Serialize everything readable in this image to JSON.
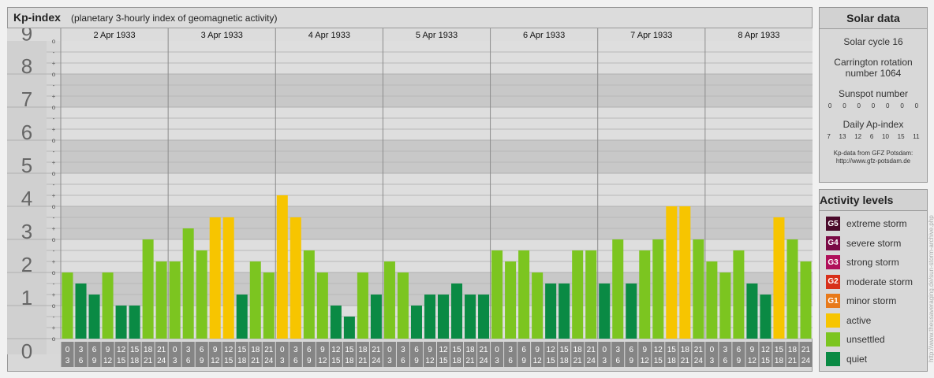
{
  "header": {
    "title": "Kp-index",
    "subtitle": "(planetary 3-hourly index of geomagnetic activity)"
  },
  "chart_data": {
    "type": "bar",
    "title": "Kp-index",
    "subtitle": "(planetary 3-hourly index of geomagnetic activity)",
    "ylim": [
      0,
      9
    ],
    "y_ticks": [
      "0",
      "1",
      "2",
      "3",
      "4",
      "5",
      "6",
      "7",
      "8",
      "9"
    ],
    "y_minor_labels": [
      "o",
      "+",
      "-"
    ],
    "days": [
      "2 Apr 1933",
      "3 Apr 1933",
      "4 Apr 1933",
      "5 Apr 1933",
      "6 Apr 1933",
      "7 Apr 1933",
      "8 Apr 1933"
    ],
    "interval_start": [
      "0",
      "3",
      "6",
      "9",
      "12",
      "15",
      "18",
      "21"
    ],
    "interval_end": [
      "3",
      "6",
      "9",
      "12",
      "15",
      "18",
      "21",
      "24"
    ],
    "values": [
      [
        2.0,
        1.667,
        1.333,
        2.0,
        1.0,
        1.0,
        3.0,
        2.333
      ],
      [
        2.333,
        3.333,
        2.667,
        3.667,
        3.667,
        1.333,
        2.333,
        2.0
      ],
      [
        4.333,
        3.667,
        2.667,
        2.0,
        1.0,
        0.667,
        2.0,
        1.333
      ],
      [
        2.333,
        2.0,
        1.0,
        1.333,
        1.333,
        1.667,
        1.333,
        1.333
      ],
      [
        2.667,
        2.333,
        2.667,
        2.0,
        1.667,
        1.667,
        2.667,
        2.667
      ],
      [
        1.667,
        3.0,
        1.667,
        2.667,
        3.0,
        4.0,
        4.0,
        3.0
      ],
      [
        2.333,
        2.0,
        2.667,
        1.667,
        1.333,
        3.667,
        3.0,
        2.333
      ]
    ],
    "colors": {
      "quiet": "#0a8a44",
      "unsettled": "#7cc520",
      "active": "#f7c500"
    }
  },
  "solar": {
    "title": "Solar data",
    "cycle": "Solar cycle 16",
    "carrington_1": "Carrington rotation",
    "carrington_2": "number 1064",
    "sunspot_label": "Sunspot number",
    "sunspot_values": [
      "0",
      "0",
      "0",
      "0",
      "0",
      "0",
      "0"
    ],
    "ap_label": "Daily Ap-index",
    "ap_values": [
      "7",
      "13",
      "12",
      "6",
      "10",
      "15",
      "11"
    ],
    "source_1": "Kp-data from GFZ Potsdam:",
    "source_2": "http://www.gfz-potsdam.de"
  },
  "levels": {
    "title": "Activity levels",
    "items": [
      {
        "badge": "G5",
        "label": "extreme storm",
        "color": "#4a0a2a"
      },
      {
        "badge": "G4",
        "label": "severe storm",
        "color": "#7a0a45"
      },
      {
        "badge": "G3",
        "label": "strong storm",
        "color": "#b0105a"
      },
      {
        "badge": "G2",
        "label": "moderate storm",
        "color": "#d8301a"
      },
      {
        "badge": "G1",
        "label": "minor storm",
        "color": "#e87a1a"
      },
      {
        "badge": "",
        "label": "active",
        "color": "#f7c500"
      },
      {
        "badge": "",
        "label": "unsettled",
        "color": "#7cc520"
      },
      {
        "badge": "",
        "label": "quiet",
        "color": "#0a8a44"
      }
    ]
  },
  "credit": "http://www.theusaveraging.de/sun-storm-archive.php"
}
